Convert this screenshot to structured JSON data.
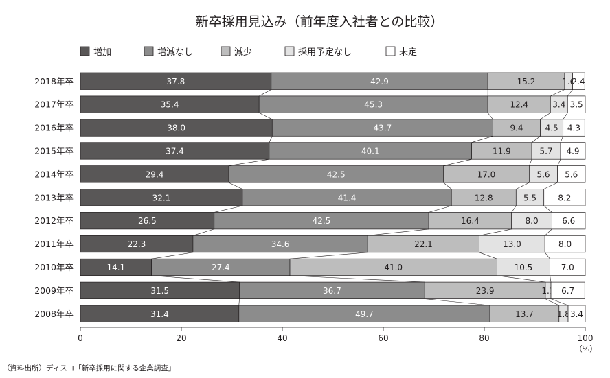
{
  "chart_data": {
    "type": "bar",
    "orientation": "horizontal",
    "stacked": true,
    "title": "新卒採用見込み（前年度入社者との比較）",
    "categories": [
      "2018年卒",
      "2017年卒",
      "2016年卒",
      "2015年卒",
      "2014年卒",
      "2013年卒",
      "2012年卒",
      "2011年卒",
      "2010年卒",
      "2009年卒",
      "2008年卒"
    ],
    "series": [
      {
        "name": "増加",
        "color": "#595757",
        "label_color": "#ffffff",
        "values": [
          37.8,
          35.4,
          38.0,
          37.4,
          29.4,
          32.1,
          26.5,
          22.3,
          14.1,
          31.5,
          31.4
        ]
      },
      {
        "name": "増減なし",
        "color": "#8c8c8c",
        "label_color": "#ffffff",
        "values": [
          42.9,
          45.3,
          43.7,
          40.1,
          42.5,
          41.4,
          42.5,
          34.6,
          27.4,
          36.7,
          49.7
        ]
      },
      {
        "name": "減少",
        "color": "#bdbdbd",
        "label_color": "#231f20",
        "values": [
          15.2,
          12.4,
          9.4,
          11.9,
          17.0,
          12.8,
          16.4,
          22.1,
          41.0,
          23.9,
          13.7
        ]
      },
      {
        "name": "採用予定なし",
        "color": "#e3e3e3",
        "label_color": "#231f20",
        "values": [
          1.6,
          3.4,
          4.5,
          5.7,
          5.6,
          5.5,
          8.0,
          13.0,
          10.5,
          1.1,
          1.8
        ]
      },
      {
        "name": "未定",
        "color": "#ffffff",
        "label_color": "#231f20",
        "values": [
          2.4,
          3.5,
          4.3,
          4.9,
          5.6,
          8.2,
          6.6,
          8.0,
          7.0,
          6.7,
          3.4
        ]
      }
    ],
    "value_labels": [
      [
        "37.8",
        "42.9",
        "15.2",
        "1.6",
        "2.4"
      ],
      [
        "35.4",
        "45.3",
        "12.4",
        "3.4",
        "3.5"
      ],
      [
        "38.0",
        "43.7",
        "9.4",
        "4.5",
        "4.3"
      ],
      [
        "37.4",
        "40.1",
        "11.9",
        "5.7",
        "4.9"
      ],
      [
        "29.4",
        "42.5",
        "17.0",
        "5.6",
        "5.6"
      ],
      [
        "32.1",
        "41.4",
        "12.8",
        "5.5",
        "8.2"
      ],
      [
        "26.5",
        "42.5",
        "16.4",
        "8.0",
        "6.6"
      ],
      [
        "22.3",
        "34.6",
        "22.1",
        "13.0",
        "8.0"
      ],
      [
        "14.1",
        "27.4",
        "41.0",
        "10.5",
        "7.0"
      ],
      [
        "31.5",
        "36.7",
        "23.9",
        "1.1",
        "6.7"
      ],
      [
        "31.4",
        "49.7",
        "13.7",
        "1.8",
        "3.4"
      ]
    ],
    "xlim": [
      0,
      100
    ],
    "xticks": [
      "0",
      "20",
      "40",
      "60",
      "80",
      "100"
    ],
    "xunit": "（%）",
    "grid": false,
    "legend_placement": "top-left",
    "connector_lines": true
  },
  "source": "（資料出所）ディスコ「新卒採用に関する企業調査」"
}
